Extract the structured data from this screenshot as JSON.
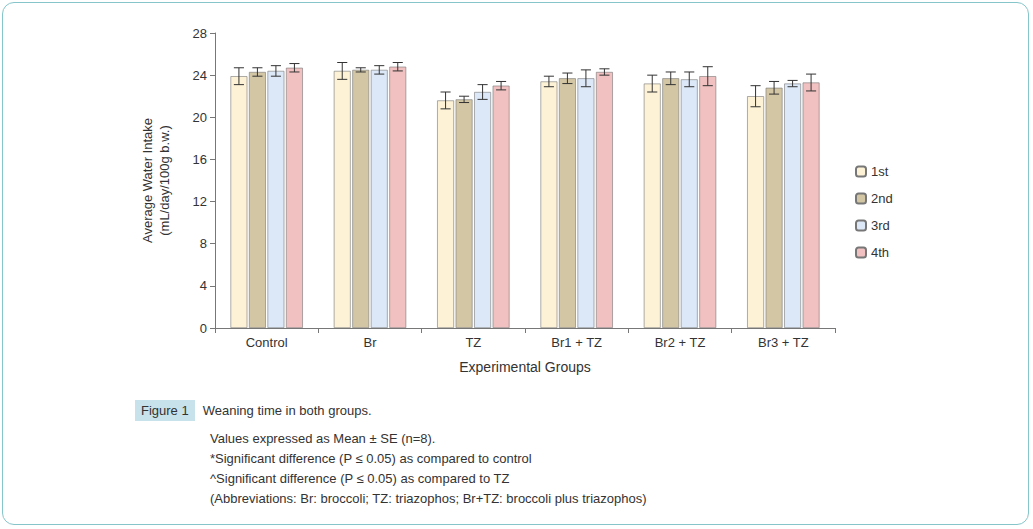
{
  "chart_data": {
    "type": "bar",
    "x_label": "Experimental Groups",
    "y_label": "Average Water Intake\n(mL/day/100g b.w.)",
    "categories": [
      "Control",
      "Br",
      "TZ",
      "Br1 + TZ",
      "Br2 + TZ",
      "Br3 + TZ"
    ],
    "series": [
      {
        "name": "1st",
        "color": "#fdf2d6",
        "values": [
          23.9,
          24.4,
          21.6,
          23.4,
          23.2,
          22.0
        ],
        "errors": [
          0.8,
          0.8,
          0.8,
          0.5,
          0.8,
          1.0
        ]
      },
      {
        "name": "2nd",
        "color": "#d3c6a4",
        "values": [
          24.3,
          24.5,
          21.7,
          23.7,
          23.7,
          22.8
        ],
        "errors": [
          0.4,
          0.2,
          0.3,
          0.5,
          0.6,
          0.6
        ]
      },
      {
        "name": "3rd",
        "color": "#dce8f8",
        "values": [
          24.4,
          24.5,
          22.4,
          23.7,
          23.6,
          23.2
        ],
        "errors": [
          0.5,
          0.4,
          0.7,
          0.8,
          0.7,
          0.3
        ]
      },
      {
        "name": "4th",
        "color": "#f1c0c0",
        "values": [
          24.7,
          24.8,
          23.0,
          24.3,
          23.9,
          23.3
        ],
        "errors": [
          0.4,
          0.4,
          0.4,
          0.3,
          0.9,
          0.8
        ]
      }
    ],
    "ylim": [
      0,
      28
    ],
    "yticks": [
      0,
      4,
      8,
      12,
      16,
      20,
      24,
      28
    ],
    "grid": false,
    "legend": "right",
    "figure_label": "Figure 1",
    "caption": "Weaning time in both groups.",
    "notes": [
      "Values expressed as Mean ± SE (n=8).",
      "*Significant difference (P ≤ 0.05) as compared to control",
      "^Significant difference (P ≤ 0.05) as compared to TZ",
      "(Abbreviations: Br: broccoli; TZ: triazophos; Br+TZ: broccoli plus triazophos)"
    ]
  }
}
